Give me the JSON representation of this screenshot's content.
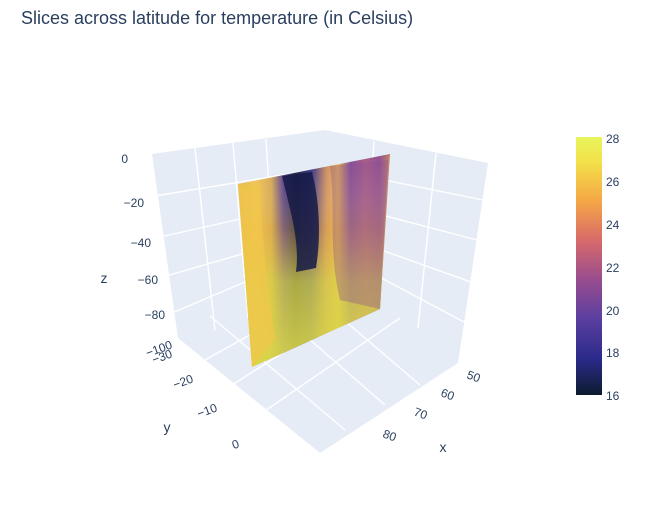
{
  "chart_data": {
    "type": "surface",
    "title": "Slices across latitude for temperature (in Celsius)",
    "axes": {
      "x": {
        "label": "x",
        "ticks": [
          "50",
          "60",
          "70",
          "80"
        ]
      },
      "y": {
        "label": "y",
        "ticks": [
          "−30",
          "−20",
          "−10",
          "0"
        ]
      },
      "z": {
        "label": "z",
        "ticks": [
          "0",
          "−20",
          "−40",
          "−60",
          "−80",
          "−100"
        ]
      }
    },
    "colorbar": {
      "ticks": [
        "28",
        "26",
        "24",
        "22",
        "20",
        "18",
        "16"
      ],
      "range": [
        16,
        28
      ],
      "colorscale": [
        "#0d1b2e",
        "#2a2a8a",
        "#5c3fa0",
        "#9a4d8e",
        "#d86a6a",
        "#f5a646",
        "#f3e04a",
        "#e8f55c"
      ]
    },
    "slice": {
      "description_values": "temperature field on a vertical slice",
      "columns": [
        26.5,
        26,
        25.5,
        24,
        22,
        18,
        16,
        16.5,
        20,
        22,
        23,
        22,
        21,
        20.5,
        21.5,
        22.5,
        22,
        21,
        20.5,
        20
      ],
      "surface_value": 27
    }
  }
}
